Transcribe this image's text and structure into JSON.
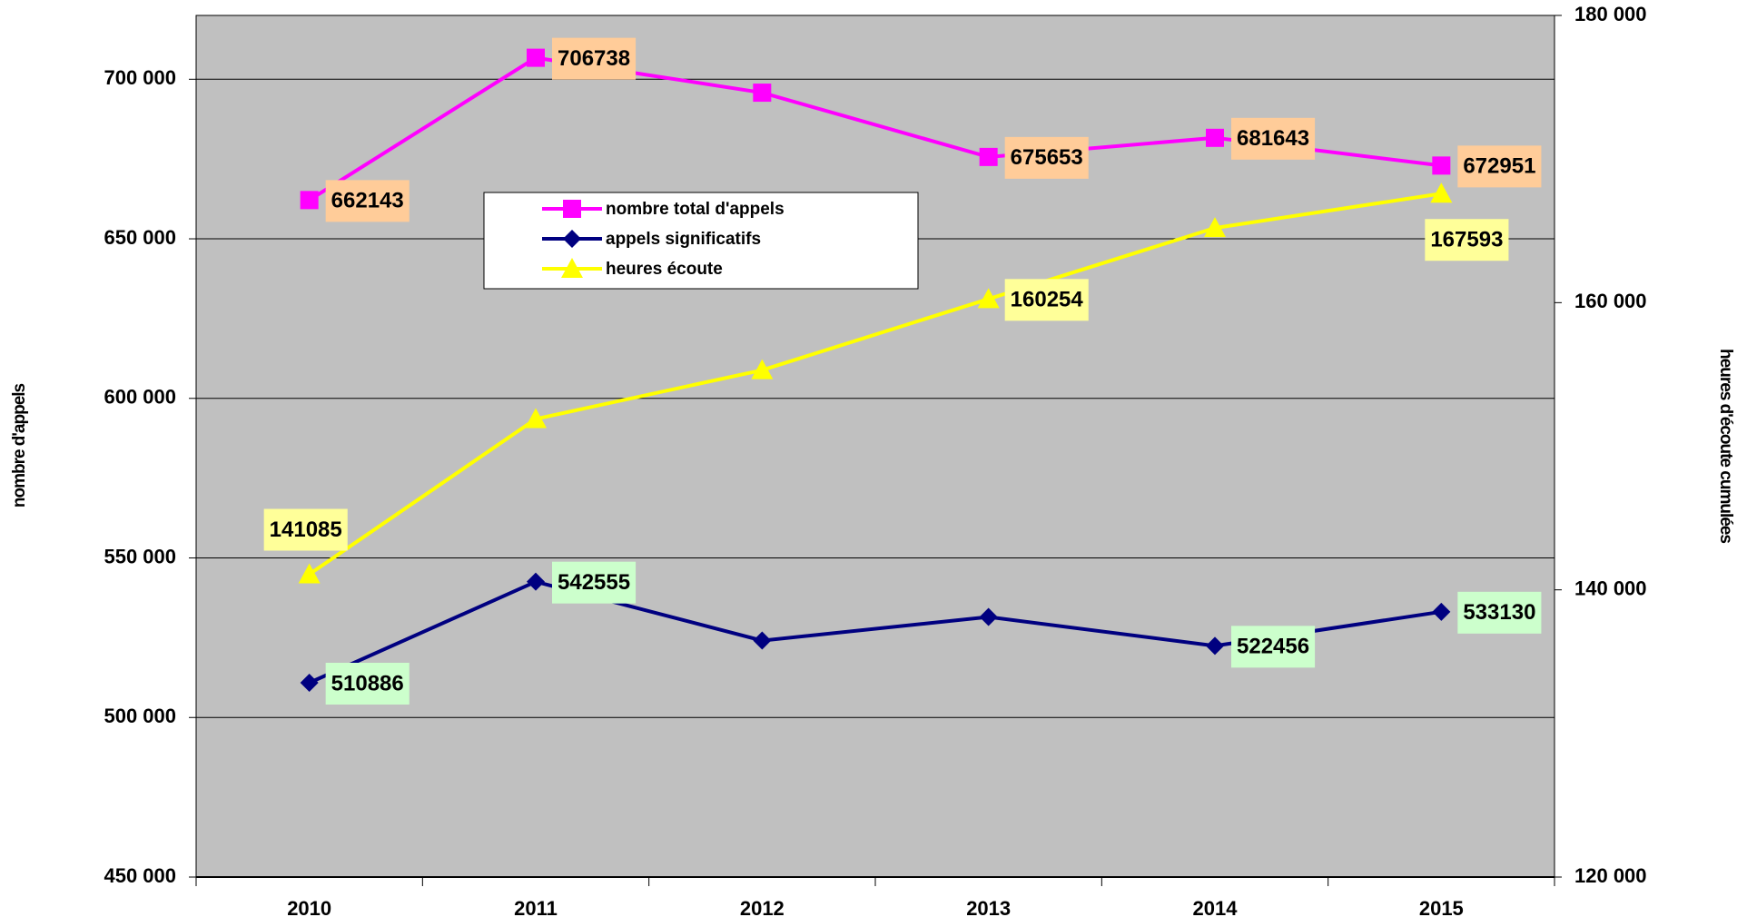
{
  "chart_data": {
    "type": "line",
    "y_label": "nombre d'appels",
    "y2_label": "heures d'écoute cumulées",
    "categories": [
      "2010",
      "2011",
      "2012",
      "2013",
      "2014",
      "2015"
    ],
    "series": [
      {
        "name": "nombre total d'appels",
        "color": "#FF00FF",
        "marker": "square",
        "label_color": "#FFCC99",
        "values": [
          662143,
          706738,
          695800,
          675653,
          681643,
          672951
        ],
        "value_labels": [
          "662143",
          "706738",
          null,
          "675653",
          "681643",
          "672951"
        ]
      },
      {
        "name": "appels significatifs",
        "color": "#000080",
        "marker": "diamond",
        "label_color": "#CCFFCC",
        "values": [
          510886,
          542555,
          524100,
          531500,
          522456,
          533130
        ],
        "value_labels": [
          "510886",
          "542555",
          null,
          null,
          "522456",
          "533130"
        ]
      },
      {
        "name": "heures écoute",
        "color": "#FFFF00",
        "marker": "triangle",
        "label_color": "#FFFF99",
        "axis": "y2",
        "values": [
          141085,
          151900,
          155300,
          160254,
          165200,
          167593
        ],
        "value_labels": [
          "141085",
          null,
          null,
          "160254",
          null,
          "167593"
        ]
      }
    ],
    "ylim": [
      450000,
      720000
    ],
    "yticks": [
      {
        "value": 450000,
        "label": "450 000"
      },
      {
        "value": 500000,
        "label": "500 000"
      },
      {
        "value": 550000,
        "label": "550 000"
      },
      {
        "value": 600000,
        "label": "600 000"
      },
      {
        "value": 650000,
        "label": "650 000"
      },
      {
        "value": 700000,
        "label": "700 000"
      }
    ],
    "y2lim": [
      120000,
      180000
    ],
    "y2ticks": [
      {
        "value": 120000,
        "label": "120 000"
      },
      {
        "value": 140000,
        "label": "140 000"
      },
      {
        "value": 160000,
        "label": "160 000"
      },
      {
        "value": 180000,
        "label": "180 000"
      }
    ],
    "grid": true,
    "plot_background": "#C0C0C0"
  }
}
